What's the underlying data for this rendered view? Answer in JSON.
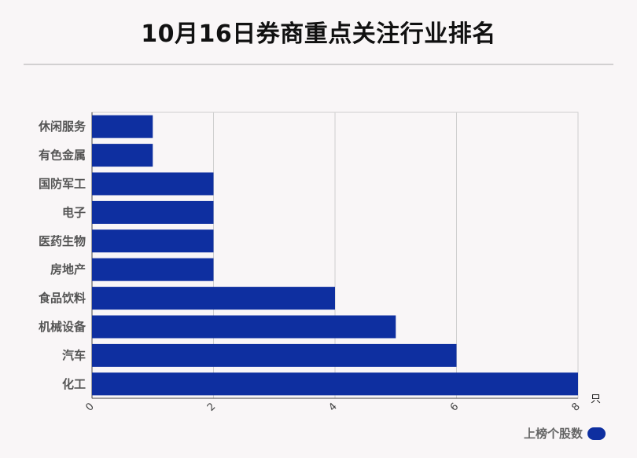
{
  "title": "10月16日券商重点关注行业排名",
  "legend": {
    "label": "上榜个股数"
  },
  "colors": {
    "bar": "#0e2fa0",
    "grid": "#cfcfcf",
    "axis": "#444444",
    "text": "#555555"
  },
  "chart_data": {
    "type": "bar",
    "orientation": "horizontal",
    "title": "10月16日券商重点关注行业排名",
    "categories": [
      "休闲服务",
      "有色金属",
      "国防军工",
      "电子",
      "医药生物",
      "房地产",
      "食品饮料",
      "机械设备",
      "汽车",
      "化工"
    ],
    "series": [
      {
        "name": "上榜个股数",
        "values": [
          1,
          1,
          2,
          2,
          2,
          2,
          4,
          5,
          6,
          8
        ]
      }
    ],
    "xlabel": "只",
    "ylabel": "",
    "xlim": [
      0,
      8
    ],
    "xticks": [
      "0",
      "2",
      "4",
      "6",
      "8"
    ],
    "grid": true,
    "legend_position": "bottom-right"
  }
}
